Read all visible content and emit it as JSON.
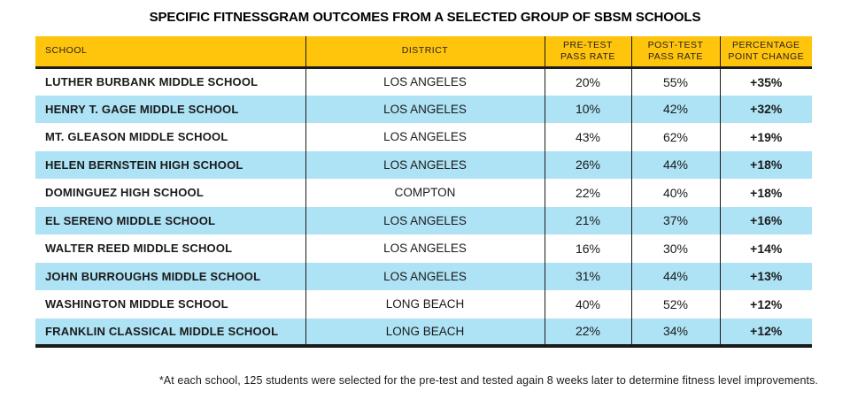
{
  "title": "SPECIFIC FITNESSGRAM OUTCOMES FROM A SELECTED GROUP OF SBSM SCHOOLS",
  "footnote": "*At each school, 125 students were selected for the pre-test and tested again 8 weeks later to determine fitness level improvements.",
  "colors": {
    "header_bg": "#FFC40C",
    "row_alt_bg": "#AEE2F5",
    "ink": "#1A1A1A"
  },
  "table": {
    "headers": {
      "school": "SCHOOL",
      "district": "DISTRICT",
      "pre_test": "PRE-TEST\nPASS RATE",
      "post_test": "POST-TEST\nPASS RATE",
      "change": "PERCENTAGE\nPOINT CHANGE"
    },
    "rows": [
      {
        "school": "LUTHER BURBANK MIDDLE SCHOOL",
        "district": "LOS ANGELES",
        "pre_test_pass_rate": "20%",
        "post_test_pass_rate": "55%",
        "percentage_point_change": "+35%"
      },
      {
        "school": "HENRY T. GAGE MIDDLE SCHOOL",
        "district": "LOS ANGELES",
        "pre_test_pass_rate": "10%",
        "post_test_pass_rate": "42%",
        "percentage_point_change": "+32%"
      },
      {
        "school": "MT. GLEASON MIDDLE SCHOOL",
        "district": "LOS ANGELES",
        "pre_test_pass_rate": "43%",
        "post_test_pass_rate": "62%",
        "percentage_point_change": "+19%"
      },
      {
        "school": "HELEN BERNSTEIN HIGH SCHOOL",
        "district": "LOS ANGELES",
        "pre_test_pass_rate": "26%",
        "post_test_pass_rate": "44%",
        "percentage_point_change": "+18%"
      },
      {
        "school": "DOMINGUEZ HIGH SCHOOL",
        "district": "COMPTON",
        "pre_test_pass_rate": "22%",
        "post_test_pass_rate": "40%",
        "percentage_point_change": "+18%"
      },
      {
        "school": "EL SERENO MIDDLE SCHOOL",
        "district": "LOS ANGELES",
        "pre_test_pass_rate": "21%",
        "post_test_pass_rate": "37%",
        "percentage_point_change": "+16%"
      },
      {
        "school": "WALTER REED MIDDLE SCHOOL",
        "district": "LOS ANGELES",
        "pre_test_pass_rate": "16%",
        "post_test_pass_rate": "30%",
        "percentage_point_change": "+14%"
      },
      {
        "school": "JOHN BURROUGHS MIDDLE SCHOOL",
        "district": "LOS ANGELES",
        "pre_test_pass_rate": "31%",
        "post_test_pass_rate": "44%",
        "percentage_point_change": "+13%"
      },
      {
        "school": "WASHINGTON MIDDLE SCHOOL",
        "district": "LONG BEACH",
        "pre_test_pass_rate": "40%",
        "post_test_pass_rate": "52%",
        "percentage_point_change": "+12%"
      },
      {
        "school": "FRANKLIN CLASSICAL MIDDLE SCHOOL",
        "district": "LONG BEACH",
        "pre_test_pass_rate": "22%",
        "post_test_pass_rate": "34%",
        "percentage_point_change": "+12%"
      }
    ]
  },
  "chart_data": {
    "type": "table",
    "title": "SPECIFIC FITNESSGRAM OUTCOMES FROM A SELECTED GROUP OF SBSM SCHOOLS",
    "columns": [
      "SCHOOL",
      "DISTRICT",
      "PRE-TEST PASS RATE",
      "POST-TEST PASS RATE",
      "PERCENTAGE POINT CHANGE"
    ],
    "rows": [
      [
        "LUTHER BURBANK MIDDLE SCHOOL",
        "LOS ANGELES",
        "20%",
        "55%",
        "+35%"
      ],
      [
        "HENRY T. GAGE MIDDLE SCHOOL",
        "LOS ANGELES",
        "10%",
        "42%",
        "+32%"
      ],
      [
        "MT. GLEASON MIDDLE SCHOOL",
        "LOS ANGELES",
        "43%",
        "62%",
        "+19%"
      ],
      [
        "HELEN BERNSTEIN HIGH SCHOOL",
        "LOS ANGELES",
        "26%",
        "44%",
        "+18%"
      ],
      [
        "DOMINGUEZ HIGH SCHOOL",
        "COMPTON",
        "22%",
        "40%",
        "+18%"
      ],
      [
        "EL SERENO MIDDLE SCHOOL",
        "LOS ANGELES",
        "21%",
        "37%",
        "+16%"
      ],
      [
        "WALTER REED MIDDLE SCHOOL",
        "LOS ANGELES",
        "16%",
        "30%",
        "+14%"
      ],
      [
        "JOHN BURROUGHS MIDDLE SCHOOL",
        "LOS ANGELES",
        "31%",
        "44%",
        "+13%"
      ],
      [
        "WASHINGTON MIDDLE SCHOOL",
        "LONG BEACH",
        "40%",
        "52%",
        "+12%"
      ],
      [
        "FRANKLIN CLASSICAL MIDDLE SCHOOL",
        "LONG BEACH",
        "22%",
        "34%",
        "+12%"
      ]
    ],
    "pre_test_values": [
      20,
      10,
      43,
      26,
      22,
      21,
      16,
      31,
      40,
      22
    ],
    "post_test_values": [
      55,
      42,
      62,
      44,
      40,
      37,
      30,
      44,
      52,
      34
    ],
    "point_change_values": [
      35,
      32,
      19,
      18,
      18,
      16,
      14,
      13,
      12,
      12
    ],
    "footnote": "*At each school, 125 students were selected for the pre-test and tested again 8 weeks later to determine fitness level improvements."
  }
}
